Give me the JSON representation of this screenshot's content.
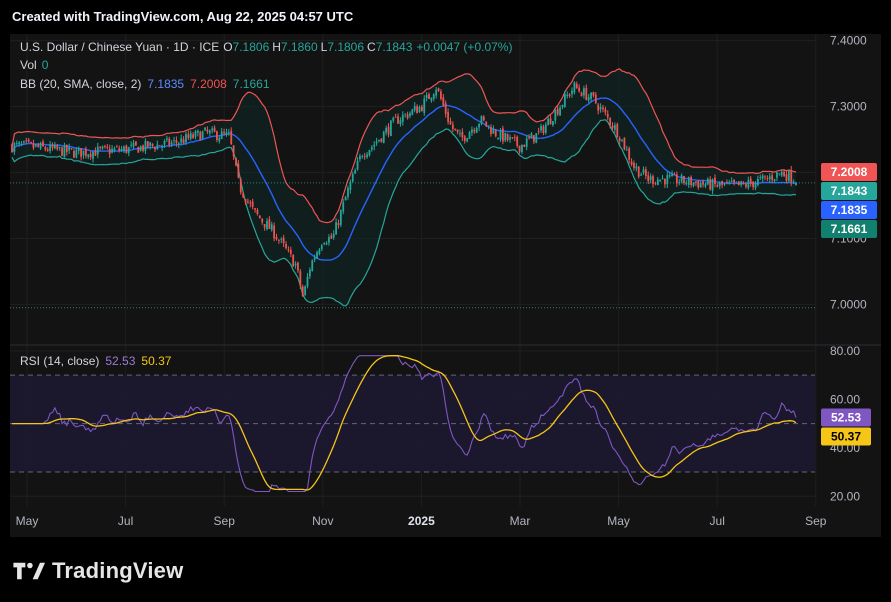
{
  "header": {
    "created_text": "Created with TradingView.com, Aug 22, 2025 04:57 UTC"
  },
  "footer": {
    "brand": "TradingView"
  },
  "colors": {
    "background": "#131313",
    "grid": "#1f1f1f",
    "up": "#26a69a",
    "down": "#ef5350",
    "bb_upper": "#f05454",
    "bb_lower": "#26a69a",
    "bb_basis": "#2962ff",
    "bb_fill": "#0f2a28",
    "rsi_line": "#7e57c2",
    "rsi_ma": "#f5c518",
    "rsi_band": "#1d1830",
    "text_muted": "#b2b5be"
  },
  "legend": {
    "symbol": "U.S. Dollar / Chinese Yuan · 1D · ICE",
    "ohlc": [
      {
        "k": "O",
        "v": "7.1806"
      },
      {
        "k": "H",
        "v": "7.1860"
      },
      {
        "k": "L",
        "v": "7.1806"
      },
      {
        "k": "C",
        "v": "7.1843"
      }
    ],
    "change": "+0.0047 (+0.07%)",
    "vol_label": "Vol",
    "vol_value": "0",
    "bb_label": "BB (20, SMA, close, 2)",
    "bb_basis": "7.1835",
    "bb_upper": "7.2008",
    "bb_lower": "7.1661",
    "rsi_label": "RSI (14, close)",
    "rsi_value": "52.53",
    "rsi_ma_value": "50.37"
  },
  "chart_data": [
    {
      "type": "candlestick",
      "symbol": "USDCNY",
      "interval": "1D",
      "x_tick_labels": [
        "May",
        "Jul",
        "Sep",
        "Nov",
        "2025",
        "Mar",
        "May",
        "Jul",
        "Sep"
      ],
      "x_ticks_month_index": [
        0,
        2,
        4,
        6,
        8,
        10,
        12,
        14,
        16
      ],
      "ylim": [
        6.94,
        7.41
      ],
      "y_ticks": [
        7.0,
        7.1,
        7.2,
        7.3,
        7.4
      ],
      "y_tick_labels": [
        "7.0000",
        "7.1000",
        "7.2000",
        "7.3000",
        "7.4000"
      ],
      "dotted_levels": [
        7.1843,
        6.995
      ],
      "close_anchor_points": [
        [
          0,
          7.24
        ],
        [
          1,
          7.23
        ],
        [
          2,
          7.235
        ],
        [
          3,
          7.245
        ],
        [
          3.6,
          7.26
        ],
        [
          4.1,
          7.255
        ],
        [
          4.3,
          7.18
        ],
        [
          4.6,
          7.14
        ],
        [
          5,
          7.11
        ],
        [
          5.45,
          7.06
        ],
        [
          5.6,
          7.01
        ],
        [
          5.75,
          7.06
        ],
        [
          6,
          7.1
        ],
        [
          6.2,
          7.1
        ],
        [
          6.5,
          7.17
        ],
        [
          6.8,
          7.23
        ],
        [
          7,
          7.24
        ],
        [
          7.5,
          7.28
        ],
        [
          8,
          7.3
        ],
        [
          8.3,
          7.33
        ],
        [
          8.6,
          7.27
        ],
        [
          8.8,
          7.25
        ],
        [
          9.2,
          7.28
        ],
        [
          9.5,
          7.26
        ],
        [
          10,
          7.24
        ],
        [
          10.4,
          7.26
        ],
        [
          10.8,
          7.3
        ],
        [
          11.1,
          7.33
        ],
        [
          11.5,
          7.31
        ],
        [
          12,
          7.26
        ],
        [
          12.3,
          7.21
        ],
        [
          12.6,
          7.19
        ],
        [
          13,
          7.19
        ],
        [
          13.5,
          7.185
        ],
        [
          14,
          7.18
        ],
        [
          14.5,
          7.18
        ],
        [
          15,
          7.19
        ],
        [
          15.3,
          7.2
        ],
        [
          15.6,
          7.19
        ],
        [
          16,
          7.184
        ]
      ],
      "bollinger": {
        "period": 20,
        "std_mult": 2,
        "last_upper": 7.2008,
        "last_basis": 7.1835,
        "last_lower": 7.1661
      },
      "price_labels": [
        {
          "value": 7.2008,
          "text": "7.2008",
          "color": "#f05454"
        },
        {
          "value": 7.1843,
          "text": "7.1843",
          "color": "#26a69a"
        },
        {
          "value": 7.1835,
          "text": "7.1835",
          "color": "#2962ff"
        },
        {
          "value": 7.1661,
          "text": "7.1661",
          "color": "#12806f"
        }
      ]
    },
    {
      "type": "line",
      "title": "RSI (14, close)",
      "ylim": [
        16,
        82
      ],
      "y_ticks": [
        20,
        40,
        60,
        80
      ],
      "y_tick_labels": [
        "20.00",
        "40.00",
        "60.00",
        "80.00"
      ],
      "bands": [
        30,
        50,
        70
      ],
      "series": [
        {
          "name": "RSI",
          "last": 52.53,
          "color": "#7e57c2"
        },
        {
          "name": "RSI MA",
          "last": 50.37,
          "color": "#f5c518"
        }
      ],
      "value_labels": [
        {
          "value": 52.53,
          "text": "52.53",
          "color": "#7e57c2"
        },
        {
          "value": 50.37,
          "text": "50.37",
          "color": "#f5c518"
        }
      ]
    }
  ]
}
